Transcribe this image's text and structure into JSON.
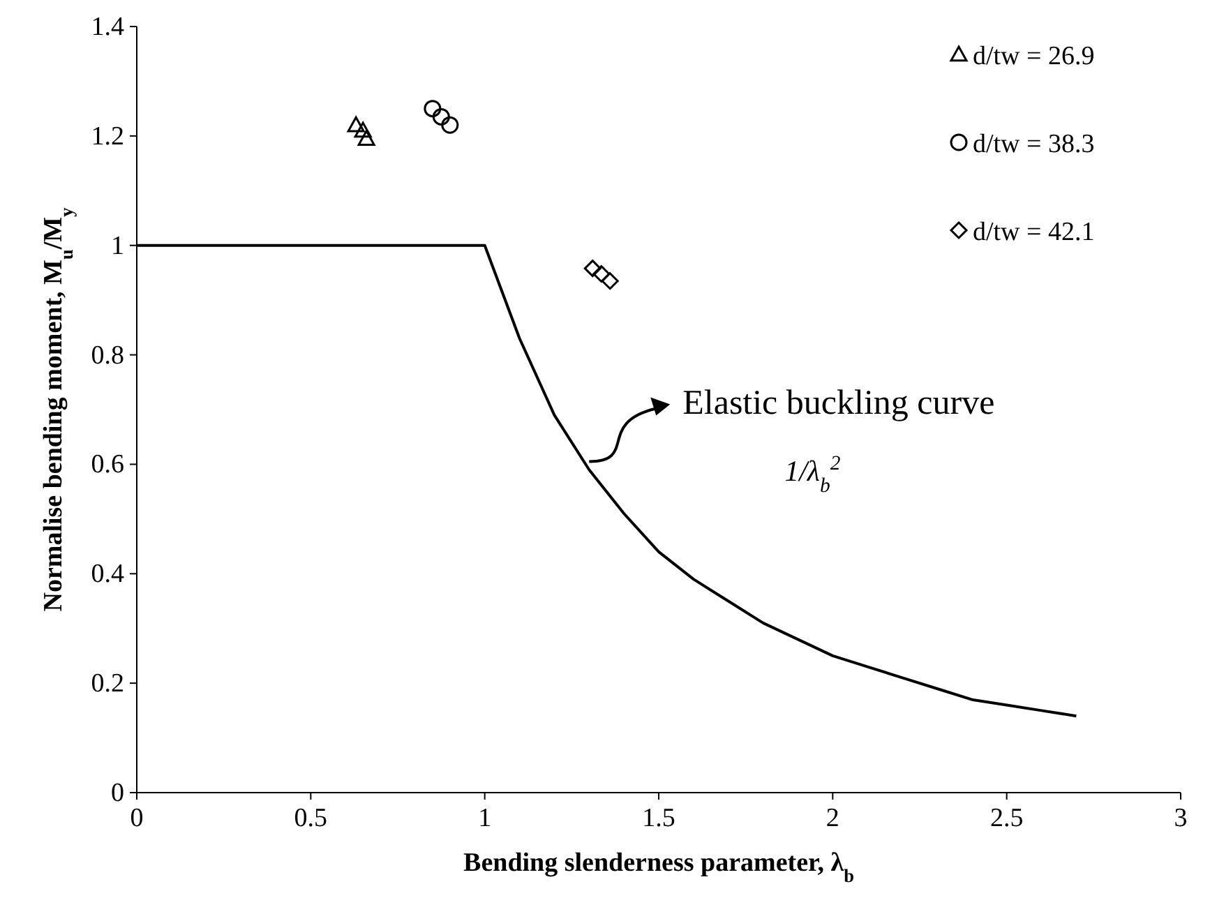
{
  "chart_data": {
    "type": "scatter",
    "xlabel": "Bending slenderness parameter, λ$_{b}$",
    "ylabel": "Normalise bending moment, M$_{u}$/M$_{y}$",
    "xlim": [
      0,
      3
    ],
    "xticks": [
      0,
      0.5,
      1,
      1.5,
      2,
      2.5,
      3
    ],
    "ylim": [
      0,
      1.4
    ],
    "yticks": [
      0,
      0.2,
      0.4,
      0.6,
      0.8,
      1,
      1.2,
      1.4
    ],
    "grid": false,
    "legend": "top right",
    "series": [
      {
        "type": "line",
        "color": "#000000",
        "marker": "none",
        "x": [
          0,
          1,
          1.1,
          1.2,
          1.3,
          1.4,
          1.5,
          1.6,
          1.7,
          1.8,
          1.9,
          2,
          2.1,
          2.2,
          2.3,
          2.4,
          2.5,
          2.6,
          2.7
        ],
        "values": [
          1,
          1,
          0.83,
          0.69,
          0.59,
          0.51,
          0.44,
          0.39,
          0.35,
          0.31,
          0.28,
          0.25,
          0.23,
          0.21,
          0.19,
          0.17,
          0.16,
          0.15,
          0.14
        ]
      },
      {
        "name": "d/tw = 26.9",
        "color": "#000000",
        "marker": "triangle",
        "x": [
          0.63,
          0.65,
          0.66
        ],
        "values": [
          1.22,
          1.21,
          1.195
        ]
      },
      {
        "name": "d/tw = 38.3",
        "color": "#000000",
        "marker": "circle",
        "x": [
          0.85,
          0.875,
          0.9
        ],
        "values": [
          1.25,
          1.235,
          1.22
        ]
      },
      {
        "name": "d/tw = 42.1",
        "color": "#000000",
        "marker": "diamond",
        "x": [
          1.31,
          1.335,
          1.36
        ],
        "values": [
          0.958,
          0.948,
          0.935
        ]
      }
    ],
    "annotations": [
      {
        "text": "Elastic buckling curve",
        "x": 1.3,
        "y": 0.6
      },
      "1/λ$_{b}$$^{2}$"
    ]
  }
}
